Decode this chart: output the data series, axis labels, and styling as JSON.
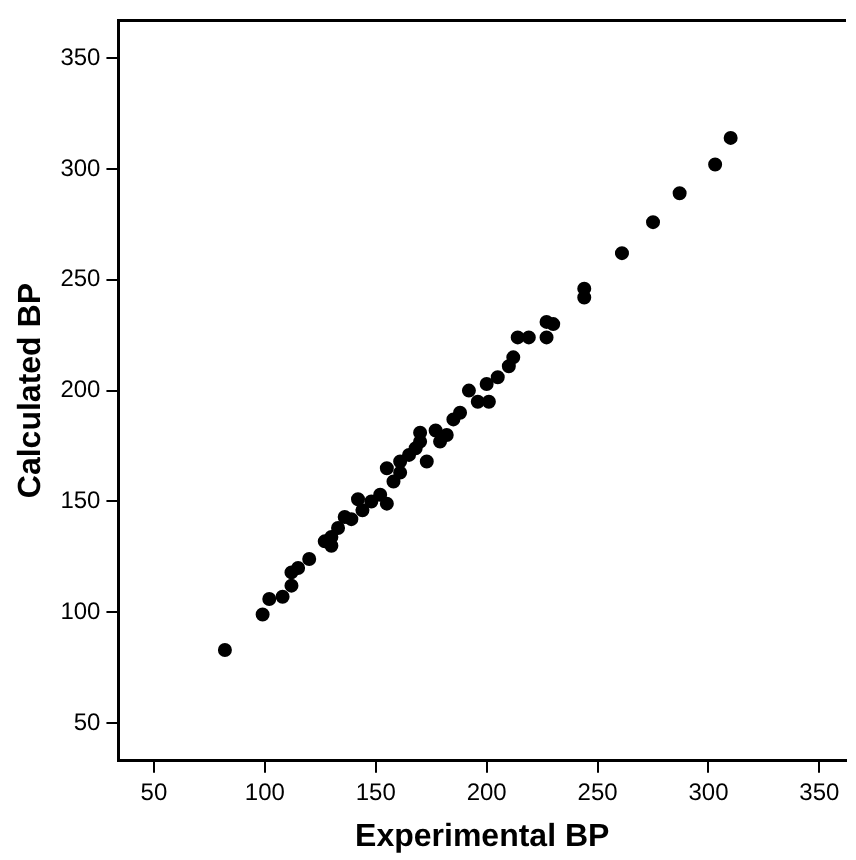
{
  "chart_data": {
    "type": "scatter",
    "xlabel": "Experimental BP",
    "ylabel": "Calculated BP",
    "color": "#000000",
    "marker": "circle",
    "grid": false,
    "legend": false,
    "x": [
      82,
      99,
      102,
      108,
      112,
      112,
      115,
      120,
      127,
      130,
      130,
      133,
      136,
      139,
      142,
      144,
      148,
      152,
      155,
      155,
      158,
      161,
      161,
      165,
      168,
      170,
      170,
      173,
      177,
      179,
      182,
      185,
      188,
      192,
      196,
      200,
      201,
      205,
      210,
      212,
      214,
      219,
      227,
      227,
      230,
      244,
      244,
      261,
      275,
      287,
      303,
      310
    ],
    "values": [
      83,
      99,
      106,
      107,
      112,
      118,
      120,
      124,
      132,
      134,
      130,
      138,
      143,
      142,
      151,
      146,
      150,
      153,
      149,
      165,
      159,
      168,
      163,
      171,
      174,
      177,
      181,
      168,
      182,
      177,
      180,
      187,
      190,
      200,
      195,
      203,
      195,
      206,
      211,
      215,
      224,
      224,
      224,
      231,
      230,
      246,
      242,
      262,
      276,
      289,
      302,
      314
    ],
    "xlim": [
      34,
      362
    ],
    "ylim": [
      33,
      367
    ],
    "xticks": [
      50,
      100,
      150,
      200,
      250,
      300,
      350
    ],
    "yticks": [
      50,
      100,
      150,
      200,
      250,
      300,
      350
    ]
  }
}
